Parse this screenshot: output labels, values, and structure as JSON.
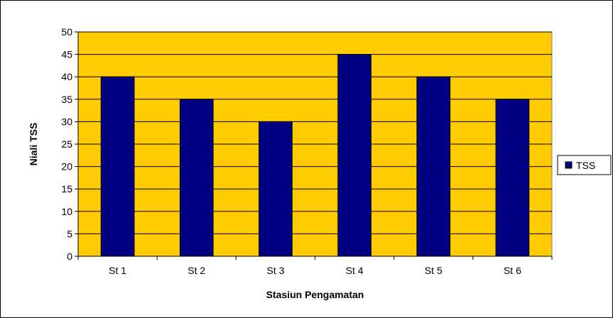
{
  "chart_data": {
    "type": "bar",
    "categories": [
      "St 1",
      "St 2",
      "St 3",
      "St 4",
      "St 5",
      "St 6"
    ],
    "series": [
      {
        "name": "TSS",
        "values": [
          40,
          35,
          30,
          45,
          40,
          35
        ],
        "color": "#000080"
      }
    ],
    "xlabel": "Stasiun Pengamatan",
    "ylabel": "Niali TSS",
    "ylim": [
      0,
      50
    ],
    "yticks": [
      "0",
      "5",
      "10",
      "15",
      "20",
      "25",
      "30",
      "35",
      "40",
      "45",
      "50"
    ],
    "grid": true,
    "legend_position": "right",
    "plot_background": "#FFCC00"
  }
}
